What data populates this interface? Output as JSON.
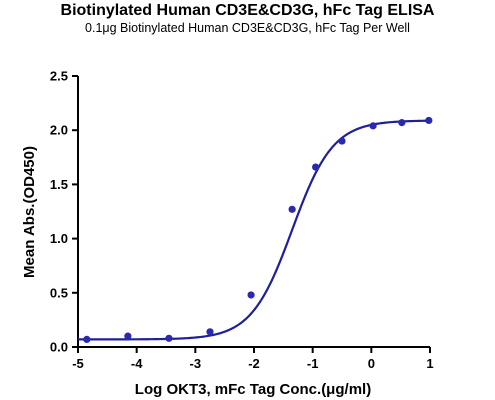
{
  "chart_data": {
    "type": "scatter",
    "title": "Biotinylated Human CD3E&CD3G, hFc Tag ELISA",
    "subtitle": "0.1μg Biotinylated Human CD3E&CD3G, hFc Tag Per Well",
    "xlabel": "Log OKT3, mFc Tag Conc.(μg/ml)",
    "ylabel": "Mean Abs.(OD450)",
    "xlim": [
      -5,
      1
    ],
    "ylim": [
      0,
      2.5
    ],
    "xticks": [
      -5,
      -4,
      -3,
      -2,
      -1,
      0,
      1
    ],
    "yticks": [
      0.0,
      0.5,
      1.0,
      1.5,
      2.0,
      2.5
    ],
    "xtick_labels": [
      "-5",
      "-4",
      "-3",
      "-2",
      "-1",
      "0",
      "1"
    ],
    "ytick_labels": [
      "0.0",
      "0.5",
      "1.0",
      "1.5",
      "2.0",
      "2.5"
    ],
    "grid": false,
    "series": [
      {
        "marker_color": "#2a2ab0",
        "line_color": "#1f1f99",
        "x": [
          -4.85,
          -4.15,
          -3.45,
          -2.75,
          -2.05,
          -1.35,
          -0.95,
          -0.5,
          0.03,
          0.52,
          0.98
        ],
        "y": [
          0.07,
          0.1,
          0.08,
          0.14,
          0.48,
          1.27,
          1.66,
          1.9,
          2.04,
          2.07,
          2.09
        ]
      }
    ],
    "fit": {
      "bottom": 0.07,
      "top": 2.09,
      "log_ec50": -1.35,
      "hill_slope": 1.25
    }
  }
}
